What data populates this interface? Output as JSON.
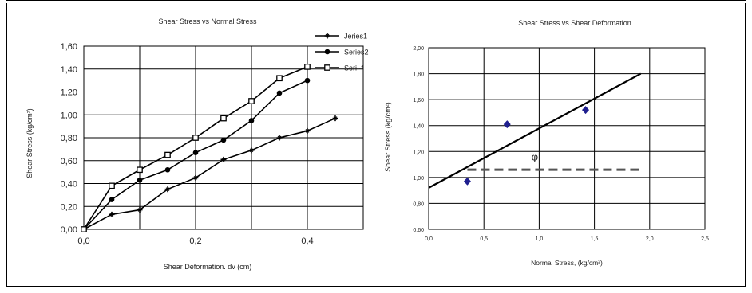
{
  "chart_data": [
    {
      "type": "line",
      "title": "Shear Stress vs Normal Stress",
      "xlabel": "Shear Deformation. dv (cm)",
      "ylabel": "Shear Stress (kg/cm²)",
      "xlim": [
        0,
        0.5
      ],
      "ylim": [
        0,
        1.6
      ],
      "x_ticks": [
        0,
        0.2,
        0.4
      ],
      "x_tick_labels": [
        "0,0",
        "0,2",
        "0,4"
      ],
      "y_ticks": [
        0,
        0.2,
        0.4,
        0.6,
        0.8,
        1.0,
        1.2,
        1.4,
        1.6
      ],
      "y_tick_labels": [
        "0,00",
        "0,20",
        "0,40",
        "0,60",
        "0,80",
        "1,00",
        "1,20",
        "1,40",
        "1,60"
      ],
      "grid": true,
      "legend_position": "top-right",
      "series": [
        {
          "name": "Series1",
          "legend_label": "Jeries1",
          "marker": "plus",
          "x": [
            0,
            0.05,
            0.1,
            0.15,
            0.2,
            0.25,
            0.3,
            0.35,
            0.4,
            0.45
          ],
          "values": [
            0.0,
            0.13,
            0.17,
            0.35,
            0.45,
            0.61,
            0.69,
            0.8,
            0.86,
            0.97
          ]
        },
        {
          "name": "Series2",
          "legend_label": "Series2",
          "marker": "circle",
          "x": [
            0,
            0.05,
            0.1,
            0.15,
            0.2,
            0.25,
            0.3,
            0.35,
            0.4
          ],
          "values": [
            0.0,
            0.26,
            0.43,
            0.52,
            0.67,
            0.78,
            0.95,
            1.19,
            1.3
          ]
        },
        {
          "name": "Series3",
          "legend_label": "Seri~*",
          "marker": "square",
          "x": [
            0,
            0.05,
            0.1,
            0.15,
            0.2,
            0.25,
            0.3,
            0.35,
            0.4
          ],
          "values": [
            0.0,
            0.38,
            0.52,
            0.65,
            0.8,
            0.97,
            1.12,
            1.32,
            1.42
          ]
        }
      ]
    },
    {
      "type": "scatter",
      "title": "Shear Stress vs Shear Deformation",
      "xlabel": "Normal Stress, (kg/cm²)",
      "ylabel": "Shear Stress (kg/cm²)",
      "xlim": [
        0,
        2.5
      ],
      "ylim": [
        0.6,
        2.0
      ],
      "x_ticks": [
        0,
        0.5,
        1.0,
        1.5,
        2.0,
        2.5
      ],
      "x_tick_labels": [
        "0,0",
        "0,5",
        "1,0",
        "1,5",
        "2,0",
        "2,5"
      ],
      "y_ticks": [
        0.6,
        0.8,
        1.0,
        1.2,
        1.4,
        1.6,
        1.8,
        2.0
      ],
      "y_tick_labels": [
        "0,60",
        "0,80",
        "1,00",
        "1,20",
        "1,40",
        "1,60",
        "1,80",
        "2,00"
      ],
      "grid": true,
      "points": {
        "x": [
          0.35,
          0.71,
          1.42
        ],
        "values": [
          0.97,
          1.41,
          1.52
        ],
        "color": "#1f1f8f"
      },
      "fit_line": {
        "x": [
          0,
          1.92
        ],
        "values": [
          0.92,
          1.8
        ]
      },
      "reference_line": {
        "x": [
          0.35,
          1.92
        ],
        "values": [
          1.06,
          1.06
        ],
        "style": "dashed"
      },
      "annotation": {
        "text": "φ",
        "x": 0.96,
        "y": 1.13
      }
    }
  ]
}
